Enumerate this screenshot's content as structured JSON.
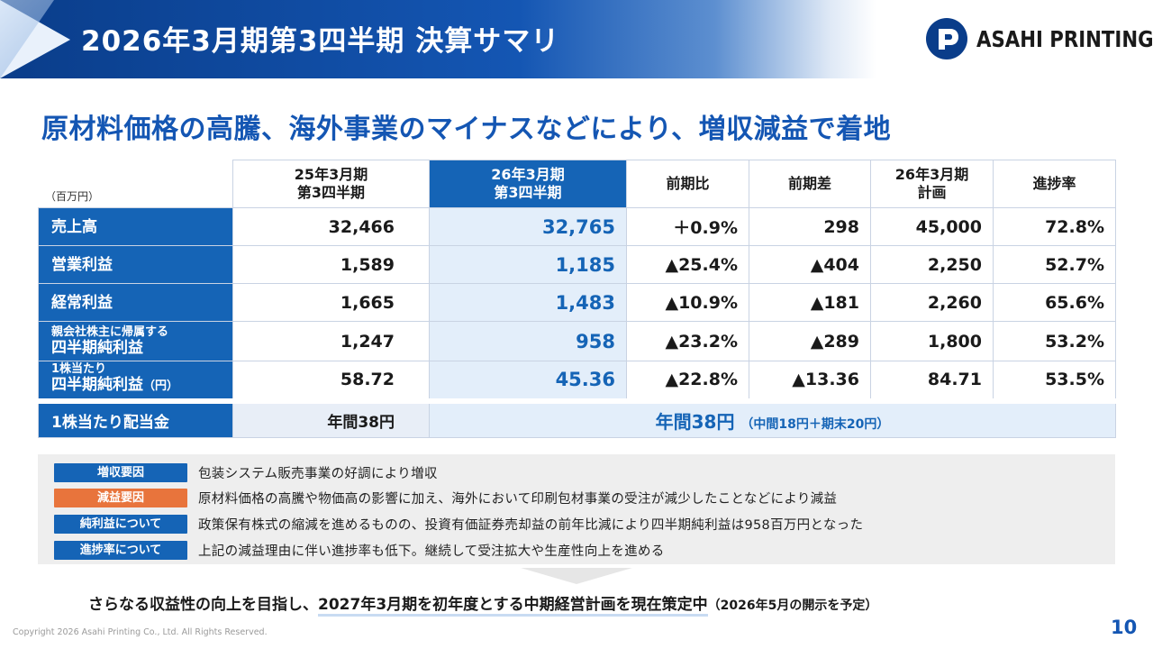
{
  "header": {
    "title": "2026年3月期第3四半期 決算サマリ"
  },
  "logo": {
    "text": "ASAHI PRINTING",
    "color": "#0a3d8a"
  },
  "subtitle": "原材料価格の高騰、海外事業のマイナスなどにより、増収減益で着地",
  "table": {
    "unit": "（百万円）",
    "columns": {
      "prev": [
        "25年3月期",
        "第3四半期"
      ],
      "cur": [
        "26年3月期",
        "第3四半期"
      ],
      "yoy_ratio": "前期比",
      "yoy_diff": "前期差",
      "plan": [
        "26年3月期",
        "計画"
      ],
      "progress": "進捗率"
    },
    "rows": [
      {
        "label": "売上高",
        "prev": "32,466",
        "cur": "32,765",
        "ratio": "＋0.9%",
        "diff": "298",
        "plan": "45,000",
        "progress": "72.8%"
      },
      {
        "label": "営業利益",
        "prev": "1,589",
        "cur": "1,185",
        "ratio": "▲25.4%",
        "diff": "▲404",
        "plan": "2,250",
        "progress": "52.7%"
      },
      {
        "label": "経常利益",
        "prev": "1,665",
        "cur": "1,483",
        "ratio": "▲10.9%",
        "diff": "▲181",
        "plan": "2,260",
        "progress": "65.6%"
      },
      {
        "label_small": "親会社株主に帰属する",
        "label_big": "四半期純利益",
        "prev": "1,247",
        "cur": "958",
        "ratio": "▲23.2%",
        "diff": "▲289",
        "plan": "1,800",
        "progress": "53.2%"
      },
      {
        "label_small": "1株当たり",
        "label_big": "四半期純利益",
        "label_suffix": "（円）",
        "prev": "58.72",
        "cur": "45.36",
        "ratio": "▲22.8%",
        "diff": "▲13.36",
        "plan": "84.71",
        "progress": "53.5%"
      }
    ],
    "dividend": {
      "label": "1株当たり配当金",
      "prev": "年間38円",
      "cur": "年間38円",
      "cur_note": "（中間18円＋期末20円）"
    }
  },
  "factors": [
    {
      "tag": "増収要因",
      "color": "#1564b6",
      "text": "包装システム販売事業の好調により増収"
    },
    {
      "tag": "減益要因",
      "color": "#e8743c",
      "text": "原材料価格の高騰や物価高の影響に加え、海外において印刷包材事業の受注が減少したことなどにより減益"
    },
    {
      "tag": "純利益について",
      "color": "#1564b6",
      "text": "政策保有株式の縮減を進めるものの、投資有価証券売却益の前年比減により四半期純利益は958百万円となった"
    },
    {
      "tag": "進捗率について",
      "color": "#1564b6",
      "text": "上記の減益理由に伴い進捗率も低下。継続して受注拡大や生産性向上を進める"
    }
  ],
  "conclusion": {
    "pre": "さらなる収益性の向上を目指し、",
    "highlight": "2027年3月期を初年度とする中期経営計画を現在策定中",
    "note": "（2026年5月の開示を予定）"
  },
  "footer": {
    "copyright": "Copyright 2026 Asahi Printing Co., Ltd. All Rights Reserved.",
    "page": "10"
  }
}
